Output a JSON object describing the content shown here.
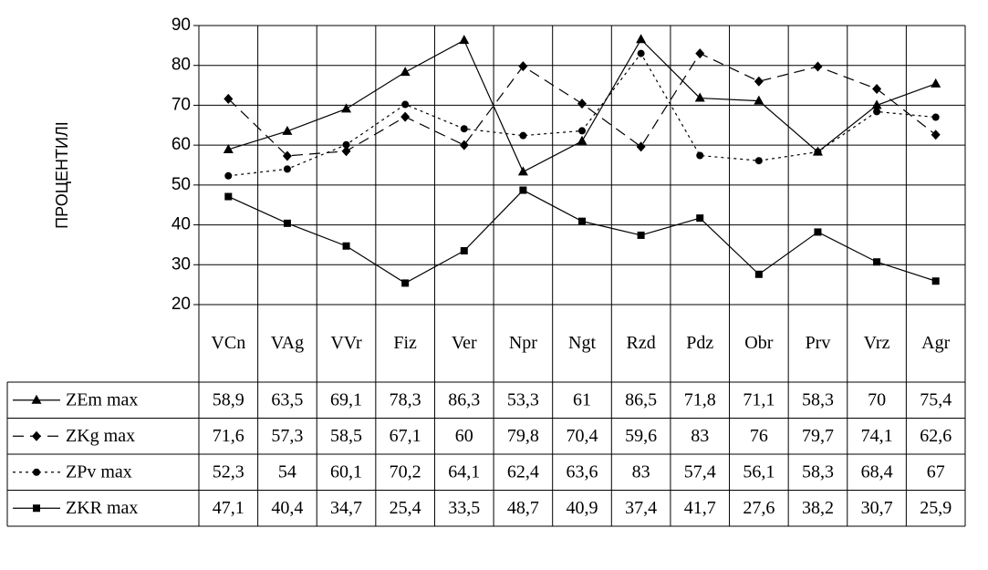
{
  "chart_data": {
    "type": "line",
    "ylabel": "ПРОЦЕНТИЛІ",
    "ylim": [
      20,
      90
    ],
    "yticks": [
      90,
      80,
      70,
      60,
      50,
      40,
      30,
      20
    ],
    "grid": true,
    "categories": [
      "VCn",
      "VAg",
      "VVr",
      "Fiz",
      "Ver",
      "Npr",
      "Ngt",
      "Rzd",
      "Pdz",
      "Obr",
      "Prv",
      "Vrz",
      "Agr"
    ],
    "series": [
      {
        "name": "ZEm max",
        "marker": "triangle",
        "line": "solid",
        "values": [
          58.9,
          63.5,
          69.1,
          78.3,
          86.3,
          53.3,
          61,
          86.5,
          71.8,
          71.1,
          58.3,
          70,
          75.4
        ],
        "labels": [
          "58,9",
          "63,5",
          "69,1",
          "78,3",
          "86,3",
          "53,3",
          "61",
          "86,5",
          "71,8",
          "71,1",
          "58,3",
          "70",
          "75,4"
        ]
      },
      {
        "name": "ZKg max",
        "marker": "diamond",
        "line": "dashed",
        "values": [
          71.6,
          57.3,
          58.5,
          67.1,
          60,
          79.8,
          70.4,
          59.6,
          83,
          76,
          79.7,
          74.1,
          62.6
        ],
        "labels": [
          "71,6",
          "57,3",
          "58,5",
          "67,1",
          "60",
          "79,8",
          "70,4",
          "59,6",
          "83",
          "76",
          "79,7",
          "74,1",
          "62,6"
        ]
      },
      {
        "name": "ZPv max",
        "marker": "circle",
        "line": "dotted",
        "values": [
          52.3,
          54,
          60.1,
          70.2,
          64.1,
          62.4,
          63.6,
          83,
          57.4,
          56.1,
          58.3,
          68.4,
          67
        ],
        "labels": [
          "52,3",
          "54",
          "60,1",
          "70,2",
          "64,1",
          "62,4",
          "63,6",
          "83",
          "57,4",
          "56,1",
          "58,3",
          "68,4",
          "67"
        ]
      },
      {
        "name": "ZKR max",
        "marker": "square",
        "line": "solid",
        "values": [
          47.1,
          40.4,
          34.7,
          25.4,
          33.5,
          48.7,
          40.9,
          37.4,
          41.7,
          27.6,
          38.2,
          30.7,
          25.9
        ],
        "labels": [
          "47,1",
          "40,4",
          "34,7",
          "25,4",
          "33,5",
          "48,7",
          "40,9",
          "37,4",
          "41,7",
          "27,6",
          "38,2",
          "30,7",
          "25,9"
        ]
      }
    ]
  }
}
